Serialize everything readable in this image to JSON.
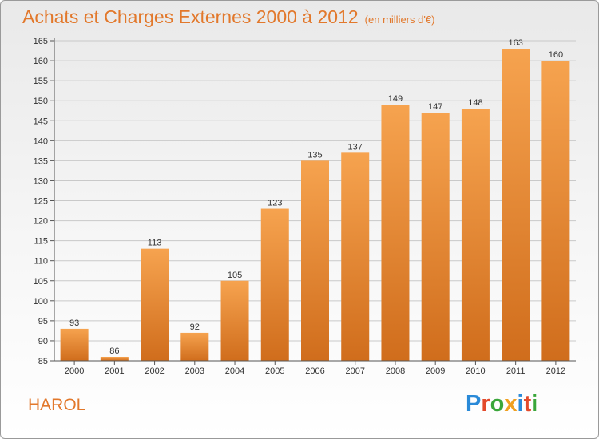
{
  "header": {
    "title": "Achats et Charges Externes 2000 à 2012",
    "subtitle": "(en milliers d'€)"
  },
  "footer": {
    "city": "HAROL",
    "logo": "Proxiti"
  },
  "colors": {
    "accent": "#e2782b",
    "bar_top": "#f6a34f",
    "bar_bottom": "#d06d1c"
  },
  "chart_data": {
    "type": "bar",
    "title": "Achats et Charges Externes 2000 à 2012",
    "subtitle": "(en milliers d'€)",
    "xlabel": "",
    "ylabel": "",
    "categories": [
      "2000",
      "2001",
      "2002",
      "2003",
      "2004",
      "2005",
      "2006",
      "2007",
      "2008",
      "2009",
      "2010",
      "2011",
      "2012"
    ],
    "values": [
      93,
      86,
      113,
      92,
      105,
      123,
      135,
      137,
      149,
      147,
      148,
      163,
      160
    ],
    "ylim": [
      85,
      165
    ],
    "yticks": [
      85,
      90,
      95,
      100,
      105,
      110,
      115,
      120,
      125,
      130,
      135,
      140,
      145,
      150,
      155,
      160,
      165
    ],
    "grid": true,
    "legend": "none",
    "data_labels": true
  }
}
